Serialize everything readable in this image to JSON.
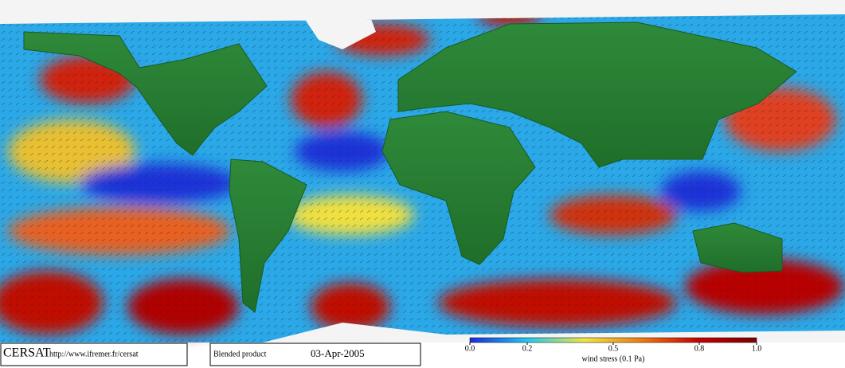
{
  "footer": {
    "logo": "CERSAT",
    "url": "http://www.ifremer.fr/cersat",
    "product": "Blended product",
    "date": "03-Apr-2005"
  },
  "colorbar": {
    "label": "wind stress (0.1 Pa)",
    "range": [
      0,
      1
    ],
    "ticks": [
      {
        "value": 0,
        "label": "0.0"
      },
      0.2,
      0.5,
      0.8,
      {
        "value": 1,
        "label": "1.0"
      }
    ],
    "colors": [
      "#1a2bd8",
      "#22c8f0",
      "#f0e640",
      "#f07a10",
      "#c40000",
      "#7a0000"
    ]
  }
}
